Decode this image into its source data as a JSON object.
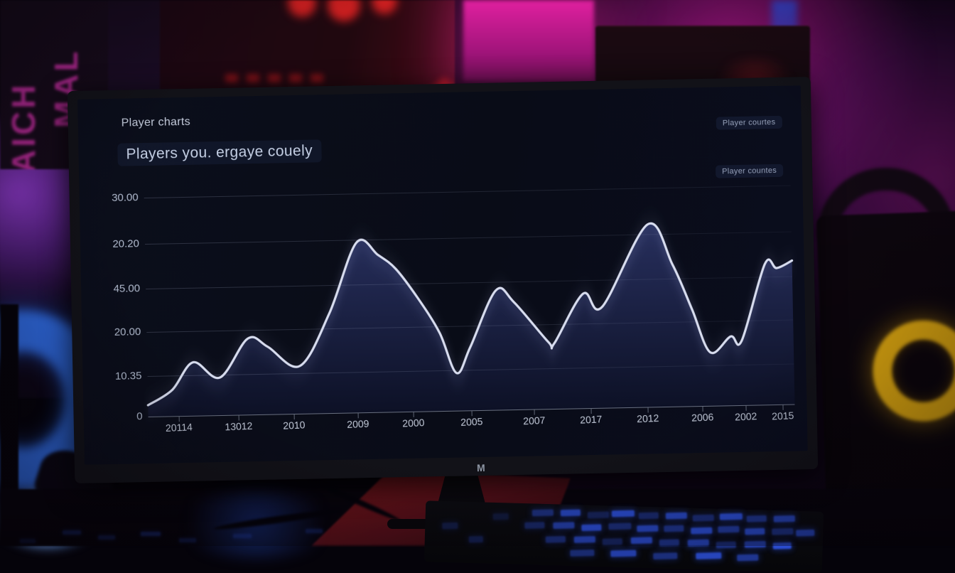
{
  "window": {
    "brand_logo": "M"
  },
  "background": {
    "poster_text_column_1": "AICH",
    "poster_text_column_2": "MAL",
    "accent_colors": {
      "wall_magenta": "#a11684",
      "wall_purple": "#8a2ec9",
      "neon_red": "#d61c1c",
      "ring_blue": "#2f6ae0",
      "speaker_yellow": "#daa50f",
      "key_blue": "#2f55e8"
    }
  },
  "screen": {
    "title": "Player charts",
    "subtitle": "Players you. ergaye couely",
    "legend_top_right": "Player courtes",
    "legend_mid_right": "Player countes"
  },
  "chart_data": {
    "type": "area",
    "title": "Player charts",
    "subtitle": "Players you. ergaye couely",
    "legend": [
      "Player courtes",
      "Player countes"
    ],
    "legend_position": "top-right",
    "grid": true,
    "x_tick_labels": [
      "20114",
      "13012",
      "2010",
      "2009",
      "2000",
      "2005",
      "2007",
      "2017",
      "2012",
      "2006",
      "2002",
      "2015"
    ],
    "x_tick_pos_permille": [
      47,
      140,
      225,
      324,
      410,
      500,
      597,
      685,
      773,
      857,
      924,
      981
    ],
    "y_tick_labels": [
      "30.00",
      "20.20",
      "45.00",
      "20.00",
      "10.35",
      "0"
    ],
    "y_tick_pos_percent": [
      0,
      21,
      41.5,
      61.5,
      81.5,
      100
    ],
    "values_percent_of_range": [
      15,
      27,
      23,
      75,
      55,
      29,
      40,
      51,
      83,
      28,
      30,
      63
    ],
    "curve_points": [
      [
        0,
        94.8
      ],
      [
        38,
        88
      ],
      [
        71,
        75.6
      ],
      [
        112,
        82.8
      ],
      [
        156,
        65.3
      ],
      [
        187,
        69.2
      ],
      [
        236,
        78.2
      ],
      [
        283,
        54.5
      ],
      [
        327,
        22.4
      ],
      [
        360,
        28.2
      ],
      [
        387,
        34.7
      ],
      [
        420,
        48.1
      ],
      [
        453,
        64.3
      ],
      [
        478,
        82.8
      ],
      [
        500,
        71.1
      ],
      [
        541,
        45.5
      ],
      [
        569,
        51
      ],
      [
        621,
        69.5
      ],
      [
        630,
        70.1
      ],
      [
        676,
        47.7
      ],
      [
        705,
        53.9
      ],
      [
        778,
        16.6
      ],
      [
        815,
        35.1
      ],
      [
        844,
        55.8
      ],
      [
        871,
        75.6
      ],
      [
        903,
        68.5
      ],
      [
        920,
        70.5
      ],
      [
        958,
        35.7
      ],
      [
        976,
        37.7
      ],
      [
        1000,
        34.4
      ]
    ],
    "line_color": "#d8ddef",
    "area_fill_top": "#272f5d",
    "area_fill_bottom": "#0d1126"
  }
}
